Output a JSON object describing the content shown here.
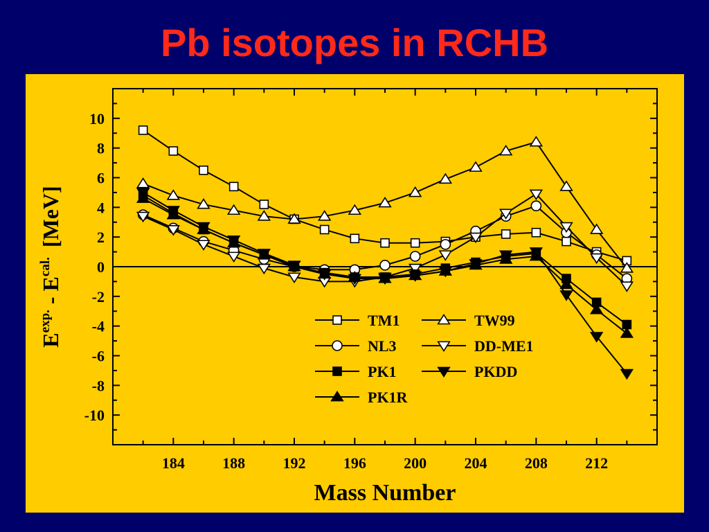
{
  "slide": {
    "title": "Pb isotopes in RCHB",
    "background_color": "#00006b",
    "title_color": "#ff2a1a",
    "panel_color": "#ffcc00"
  },
  "chart_data": {
    "type": "line",
    "title": "",
    "xlabel": "Mass Number",
    "ylabel_parts": {
      "e1": "E",
      "sup1": "exp.",
      "minus": " - ",
      "e2": "E",
      "sup2": "cal.",
      "unit": "[MeV]"
    },
    "xlim": [
      180,
      216
    ],
    "ylim": [
      -12,
      12
    ],
    "x_ticks": [
      184,
      188,
      192,
      196,
      200,
      204,
      208,
      212
    ],
    "y_ticks": [
      -10,
      -8,
      -6,
      -4,
      -2,
      0,
      2,
      4,
      6,
      8,
      10
    ],
    "zero_line": true,
    "grid": false,
    "legend_position": "lower-center",
    "x": [
      182,
      184,
      186,
      188,
      190,
      192,
      194,
      196,
      198,
      200,
      202,
      204,
      206,
      208,
      210,
      212,
      214
    ],
    "series": [
      {
        "name": "TM1",
        "marker": "square-open",
        "values": [
          9.2,
          7.8,
          6.5,
          5.4,
          4.2,
          3.2,
          2.5,
          1.9,
          1.6,
          1.6,
          1.7,
          2.0,
          2.2,
          2.3,
          1.7,
          1.0,
          0.4
        ]
      },
      {
        "name": "TW99",
        "marker": "triangle-up-open",
        "values": [
          5.6,
          4.8,
          4.2,
          3.8,
          3.4,
          3.2,
          3.4,
          3.8,
          4.3,
          5.0,
          5.9,
          6.7,
          7.8,
          8.4,
          5.4,
          2.5,
          -0.1
        ]
      },
      {
        "name": "NL3",
        "marker": "circle-open",
        "values": [
          3.5,
          2.6,
          1.7,
          1.1,
          0.5,
          0.0,
          -0.2,
          -0.2,
          0.1,
          0.7,
          1.5,
          2.4,
          3.4,
          4.1,
          2.3,
          0.8,
          -0.8
        ]
      },
      {
        "name": "DD-ME1",
        "marker": "triangle-down-open",
        "values": [
          3.4,
          2.5,
          1.5,
          0.7,
          -0.1,
          -0.7,
          -1.0,
          -1.0,
          -0.7,
          -0.1,
          0.8,
          2.0,
          3.6,
          4.9,
          2.7,
          0.6,
          -1.3
        ]
      },
      {
        "name": "PK1",
        "marker": "square-filled",
        "values": [
          4.8,
          3.6,
          2.5,
          1.6,
          0.8,
          0.0,
          -0.4,
          -0.7,
          -0.7,
          -0.5,
          -0.1,
          0.3,
          0.7,
          0.9,
          -0.8,
          -2.4,
          -3.9
        ]
      },
      {
        "name": "PKDD",
        "marker": "triangle-down-filled",
        "values": [
          5.0,
          3.8,
          2.7,
          1.8,
          0.9,
          0.1,
          -0.5,
          -0.8,
          -0.8,
          -0.6,
          -0.3,
          0.2,
          0.8,
          1.0,
          -1.9,
          -4.7,
          -7.2
        ]
      },
      {
        "name": "PK1R",
        "marker": "triangle-up-filled",
        "values": [
          4.6,
          3.5,
          2.5,
          1.6,
          0.8,
          0.0,
          -0.5,
          -0.7,
          -0.8,
          -0.6,
          -0.3,
          0.1,
          0.5,
          0.7,
          -1.2,
          -2.9,
          -4.5
        ]
      }
    ]
  }
}
